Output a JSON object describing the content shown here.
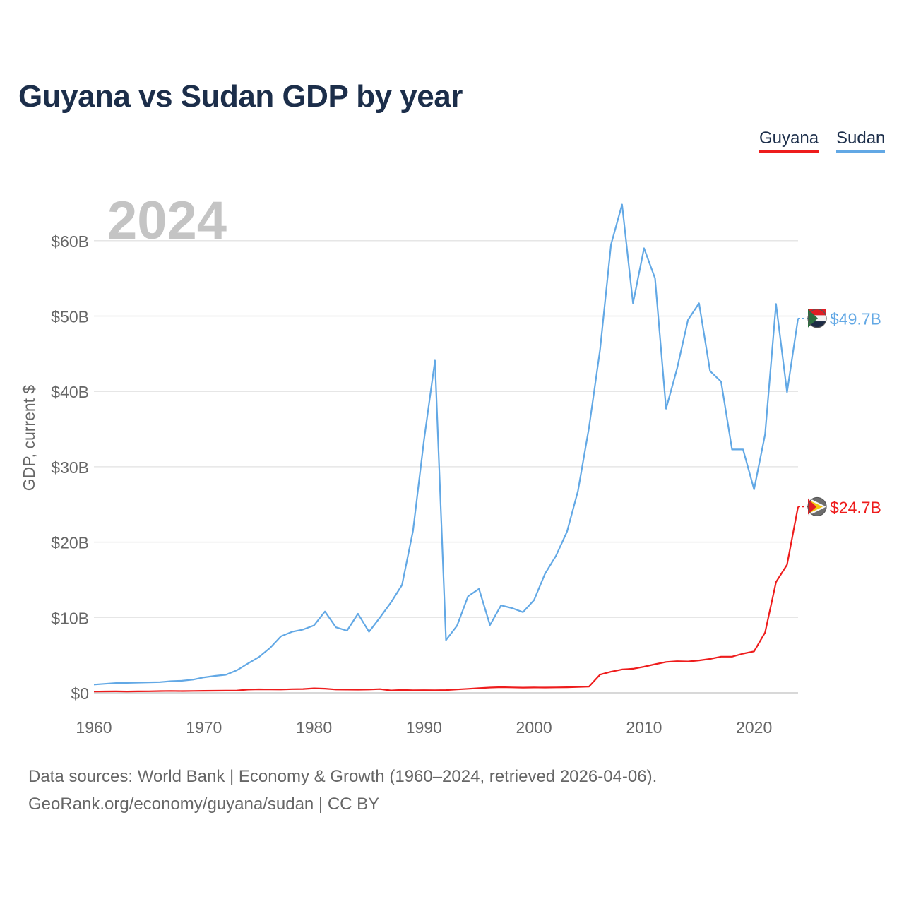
{
  "title": "Guyana vs Sudan GDP by year",
  "colors": {
    "guyana": "#ee1c1c",
    "sudan": "#62a8e5",
    "title": "#1c2e4a"
  },
  "chart_data": {
    "type": "line",
    "title": "Guyana vs Sudan GDP by year",
    "watermark_year": "2024",
    "ylabel": "GDP, current $",
    "xlabel": "",
    "xlim": [
      1960,
      2024
    ],
    "ylim": [
      0,
      65
    ],
    "y_unit": "billion current US$",
    "grid": true,
    "legend_position": "top-right",
    "x_ticks": [
      1960,
      1970,
      1980,
      1990,
      2000,
      2010,
      2020
    ],
    "x_tick_labels": [
      "1960",
      "1970",
      "1980",
      "1990",
      "2000",
      "2010",
      "2020"
    ],
    "y_ticks": [
      0,
      10,
      20,
      30,
      40,
      50,
      60
    ],
    "y_tick_labels": [
      "$0",
      "$10B",
      "$20B",
      "$30B",
      "$40B",
      "$50B",
      "$60B"
    ],
    "x": [
      1960,
      1961,
      1962,
      1963,
      1964,
      1965,
      1966,
      1967,
      1968,
      1969,
      1970,
      1971,
      1972,
      1973,
      1974,
      1975,
      1976,
      1977,
      1978,
      1979,
      1980,
      1981,
      1982,
      1983,
      1984,
      1985,
      1986,
      1987,
      1988,
      1989,
      1990,
      1991,
      1992,
      1993,
      1994,
      1995,
      1996,
      1997,
      1998,
      1999,
      2000,
      2001,
      2002,
      2003,
      2004,
      2005,
      2006,
      2007,
      2008,
      2009,
      2010,
      2011,
      2012,
      2013,
      2014,
      2015,
      2016,
      2017,
      2018,
      2019,
      2020,
      2021,
      2022,
      2023,
      2024
    ],
    "series": [
      {
        "name": "Guyana",
        "end_label": "$24.7B",
        "values": [
          0.17,
          0.19,
          0.2,
          0.18,
          0.2,
          0.21,
          0.23,
          0.25,
          0.23,
          0.25,
          0.27,
          0.28,
          0.29,
          0.31,
          0.43,
          0.47,
          0.45,
          0.44,
          0.49,
          0.51,
          0.6,
          0.55,
          0.44,
          0.43,
          0.42,
          0.44,
          0.5,
          0.32,
          0.38,
          0.35,
          0.36,
          0.35,
          0.37,
          0.45,
          0.53,
          0.62,
          0.7,
          0.75,
          0.72,
          0.69,
          0.71,
          0.7,
          0.72,
          0.74,
          0.79,
          0.83,
          2.42,
          2.8,
          3.1,
          3.2,
          3.47,
          3.8,
          4.1,
          4.2,
          4.16,
          4.3,
          4.5,
          4.8,
          4.8,
          5.2,
          5.5,
          8.0,
          14.7,
          17.0,
          24.7
        ]
      },
      {
        "name": "Sudan",
        "end_label": "$49.7B",
        "values": [
          1.1,
          1.2,
          1.3,
          1.32,
          1.36,
          1.4,
          1.42,
          1.55,
          1.6,
          1.75,
          2.05,
          2.25,
          2.4,
          3.0,
          3.9,
          4.75,
          5.95,
          7.5,
          8.1,
          8.4,
          8.95,
          10.8,
          8.7,
          8.25,
          10.5,
          8.1,
          10.0,
          12.0,
          14.3,
          21.5,
          33.5,
          44.1,
          7.0,
          8.9,
          12.8,
          13.8,
          9.0,
          11.6,
          11.25,
          10.7,
          12.3,
          15.8,
          18.2,
          21.4,
          26.8,
          35.2,
          45.5,
          59.5,
          64.8,
          51.7,
          59.0,
          55.0,
          37.7,
          43.0,
          49.5,
          51.7,
          42.7,
          41.3,
          32.3,
          32.3,
          27.0,
          34.3,
          51.6,
          39.9,
          49.7
        ]
      }
    ]
  },
  "footer": {
    "line1": "Data sources: World Bank | Economy & Growth (1960–2024, retrieved 2026-04-06).",
    "line2": "GeoRank.org/economy/guyana/sudan | CC BY"
  }
}
